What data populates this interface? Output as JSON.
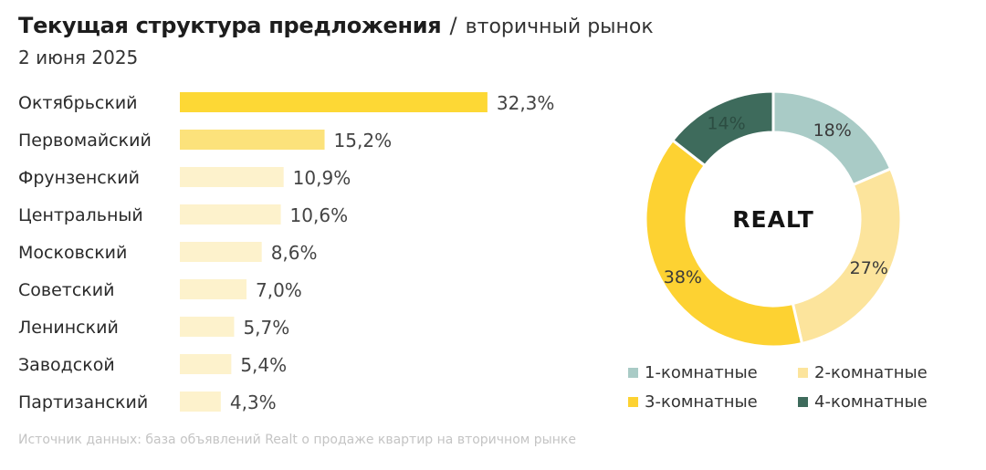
{
  "header": {
    "title": "Текущая структура предложения",
    "separator": "/",
    "subtitle": "вторичный рынок",
    "date": "2 июня 2025"
  },
  "source": "Источник данных: база объявлений Realt о продаже квартир на вторичном рынке",
  "logo_text": "REALT",
  "colors": {
    "bar_strong": "#FDD835",
    "bar_mid": "#FCE27B",
    "bar_light": "#FDF2CC",
    "room1": "#A9CBC6",
    "room2": "#FCE49C",
    "room3": "#FDD232",
    "room4": "#3E6B5C"
  },
  "chart_data": [
    {
      "type": "bar",
      "orientation": "horizontal",
      "categories": [
        "Октябрьский",
        "Первомайский",
        "Фрунзенский",
        "Центральный",
        "Московский",
        "Советский",
        "Ленинский",
        "Заводской",
        "Партизанский"
      ],
      "values": [
        32.3,
        15.2,
        10.9,
        10.6,
        8.6,
        7.0,
        5.7,
        5.4,
        4.3
      ],
      "labels": [
        "32,3%",
        "15,2%",
        "10,9%",
        "10,6%",
        "8,6%",
        "7,0%",
        "5,7%",
        "5,4%",
        "4,3%"
      ],
      "unit": "%"
    },
    {
      "type": "pie",
      "donut": true,
      "categories": [
        "1-комнатные",
        "2-комнатные",
        "3-комнатные",
        "4-комнатные"
      ],
      "values": [
        18,
        27,
        38,
        14
      ],
      "labels": [
        "18%",
        "27%",
        "38%",
        "14%"
      ],
      "legend_position": "bottom"
    }
  ]
}
